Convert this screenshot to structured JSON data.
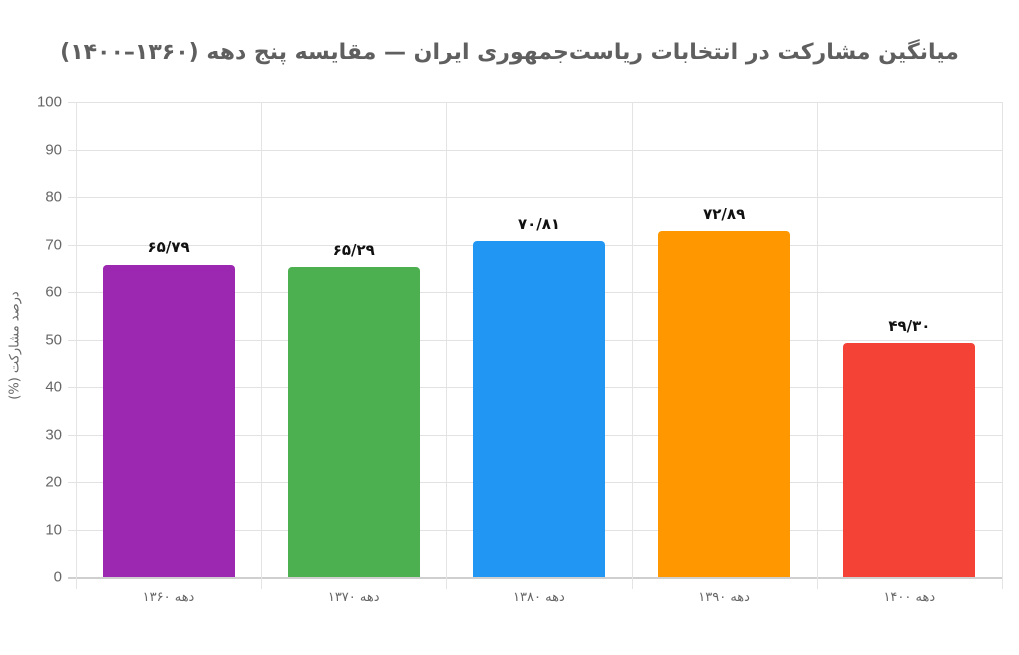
{
  "chart_data": {
    "type": "bar",
    "title": "میانگین مشارکت در انتخابات ریاست‌جمهوری ایران — مقایسه پنج دهه (۱۳۶۰–۱۴۰۰)",
    "xlabel": "",
    "ylabel": "درصد مشارکت (%)",
    "ylim": [
      0,
      100
    ],
    "yticks": [
      0,
      10,
      20,
      30,
      40,
      50,
      60,
      70,
      80,
      90,
      100
    ],
    "grid": true,
    "legend": "none",
    "categories": [
      "دهه ۱۳۶۰",
      "دهه ۱۳۷۰",
      "دهه ۱۳۸۰",
      "دهه ۱۳۹۰",
      "دهه ۱۴۰۰"
    ],
    "values": [
      65.79,
      65.29,
      70.81,
      72.89,
      49.3
    ],
    "value_labels": [
      "۶۵/۷۹",
      "۶۵/۲۹",
      "۷۰/۸۱",
      "۷۲/۸۹",
      "۴۹/۳۰"
    ],
    "colors": [
      "#9c27b0",
      "#4caf50",
      "#2196f3",
      "#ff9800",
      "#f44336"
    ]
  }
}
